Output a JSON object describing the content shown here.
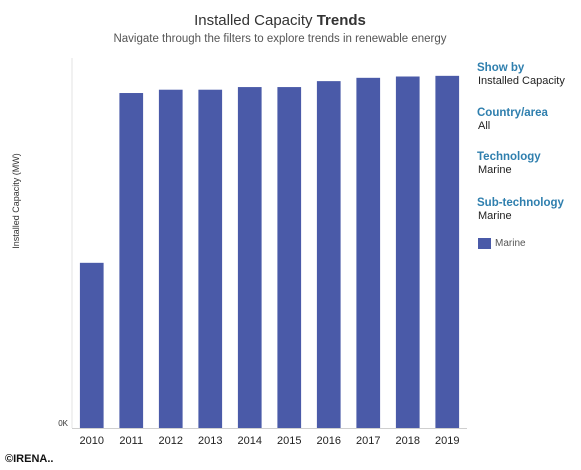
{
  "header": {
    "title_regular": "Installed Capacity",
    "title_bold": "Trends",
    "subtitle": "Navigate through the filters to explore trends in renewable energy"
  },
  "filters": {
    "show_by": {
      "label": "Show by",
      "value": "Installed Capacity"
    },
    "country": {
      "label": "Country/area",
      "value": "All"
    },
    "technology": {
      "label": "Technology",
      "value": "Marine"
    },
    "sub_technology": {
      "label": "Sub-technology",
      "value": "Marine"
    }
  },
  "legend": {
    "label": "Marine",
    "color": "#4a5aa8"
  },
  "footer": {
    "copyright": "©IRENA.."
  },
  "chart_data": {
    "type": "bar",
    "categories": [
      "2010",
      "2011",
      "2012",
      "2013",
      "2014",
      "2015",
      "2016",
      "2017",
      "2018",
      "2019"
    ],
    "series": [
      {
        "name": "Marine",
        "values": [
          250,
          507,
          512,
          512,
          516,
          516,
          525,
          530,
          532,
          533
        ]
      }
    ],
    "ylabel": "Installed Capacity (MW)",
    "ytick_label": "0K",
    "ylim": [
      0,
      560
    ],
    "color": "#4a5aa8"
  }
}
